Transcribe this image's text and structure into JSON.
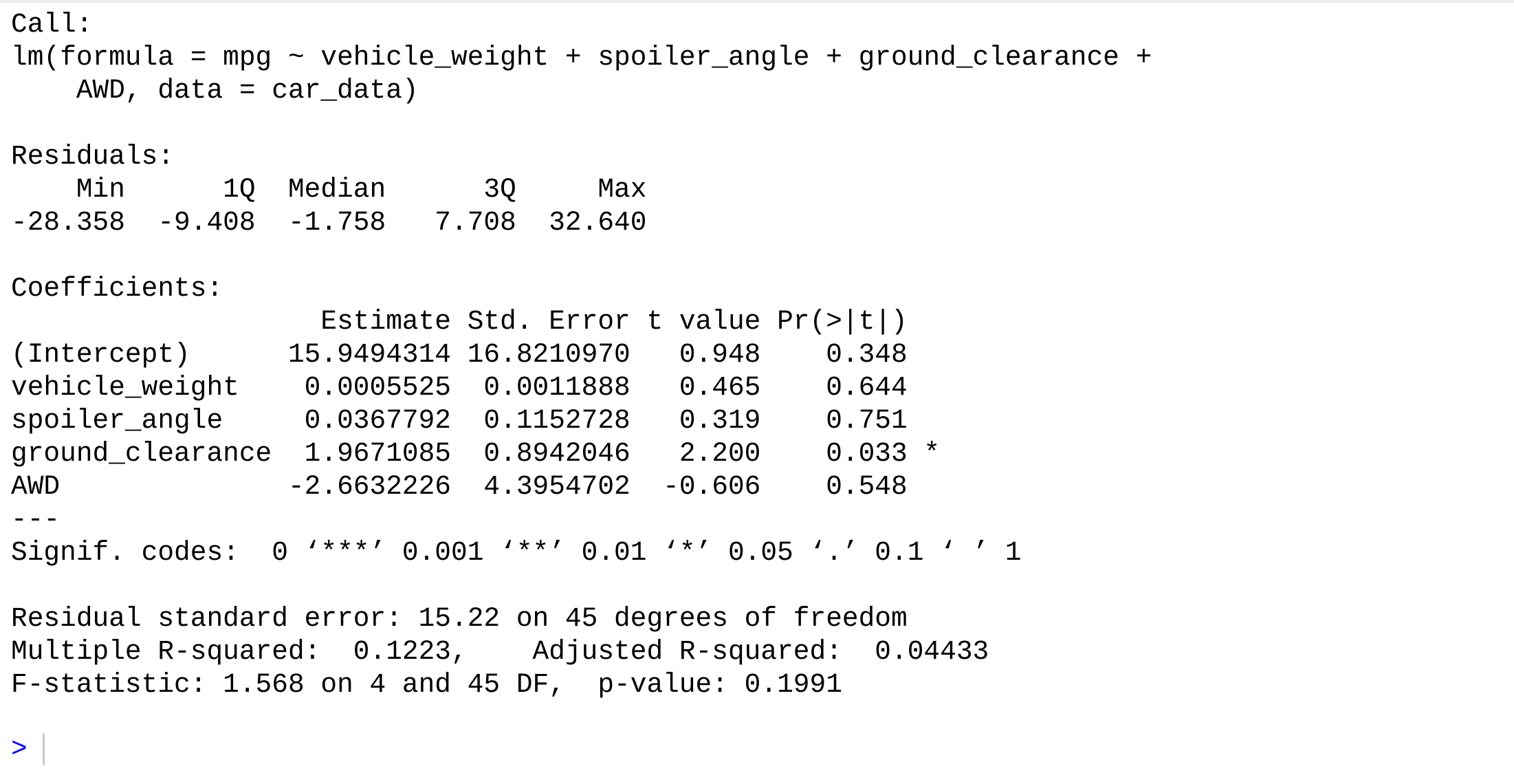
{
  "console": {
    "lines": [
      "Call:",
      "lm(formula = mpg ~ vehicle_weight + spoiler_angle + ground_clearance +",
      "    AWD, data = car_data)",
      "",
      "Residuals:",
      "    Min      1Q  Median      3Q     Max ",
      "-28.358  -9.408  -1.758   7.708  32.640 ",
      "",
      "Coefficients:",
      "                   Estimate Std. Error t value Pr(>|t|)  ",
      "(Intercept)      15.9494314 16.8210970   0.948    0.348  ",
      "vehicle_weight    0.0005525  0.0011888   0.465    0.644  ",
      "spoiler_angle     0.0367792  0.1152728   0.319    0.751  ",
      "ground_clearance  1.9671085  0.8942046   2.200    0.033 *",
      "AWD              -2.6632226  4.3954702  -0.606    0.548  ",
      "---",
      "Signif. codes:  0 ‘***’ 0.001 ‘**’ 0.01 ‘*’ 0.05 ‘.’ 0.1 ‘ ’ 1",
      "",
      "Residual standard error: 15.22 on 45 degrees of freedom",
      "Multiple R-squared:  0.1223,\tAdjusted R-squared:  0.04433 ",
      "F-statistic: 1.568 on 4 and 45 DF,  p-value: 0.1991",
      ""
    ],
    "prompt": ">",
    "prompt_color": "#0000ff"
  }
}
